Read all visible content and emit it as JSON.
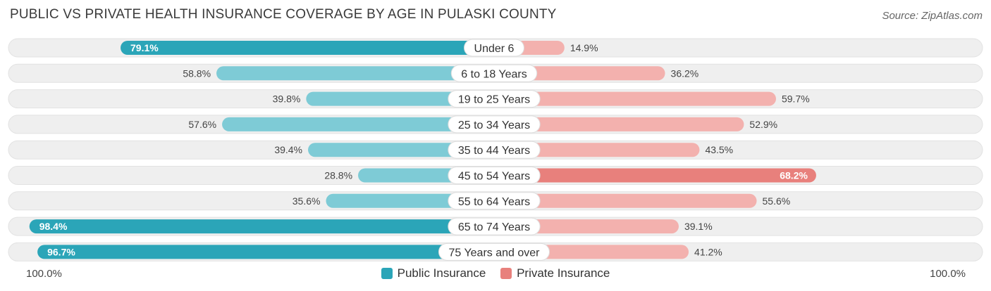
{
  "title": "PUBLIC VS PRIVATE HEALTH INSURANCE COVERAGE BY AGE IN PULASKI COUNTY",
  "source": "Source: ZipAtlas.com",
  "axis": {
    "left_label": "100.0%",
    "right_label": "100.0%"
  },
  "colors": {
    "public_strong": "#2ba5b8",
    "public_light": "#7ecbd6",
    "private_strong": "#e8807c",
    "private_light": "#f3b1ae",
    "row_background": "#efefef"
  },
  "chart_data": {
    "type": "bar",
    "orientation": "diverging-horizontal",
    "categories": [
      "Under 6",
      "6 to 18 Years",
      "19 to 25 Years",
      "25 to 34 Years",
      "35 to 44 Years",
      "45 to 54 Years",
      "55 to 64 Years",
      "65 to 74 Years",
      "75 Years and over"
    ],
    "series": [
      {
        "name": "Public Insurance",
        "values": [
          79.1,
          58.8,
          39.8,
          57.6,
          39.4,
          28.8,
          35.6,
          98.4,
          96.7
        ],
        "labels": [
          "79.1%",
          "58.8%",
          "39.8%",
          "57.6%",
          "39.4%",
          "28.8%",
          "35.6%",
          "98.4%",
          "96.7%"
        ]
      },
      {
        "name": "Private Insurance",
        "values": [
          14.9,
          36.2,
          59.7,
          52.9,
          43.5,
          68.2,
          55.6,
          39.1,
          41.2
        ],
        "labels": [
          "14.9%",
          "36.2%",
          "59.7%",
          "52.9%",
          "43.5%",
          "68.2%",
          "55.6%",
          "39.1%",
          "41.2%"
        ]
      }
    ],
    "xlim": [
      -100,
      100
    ],
    "legend": "bottom-center"
  }
}
